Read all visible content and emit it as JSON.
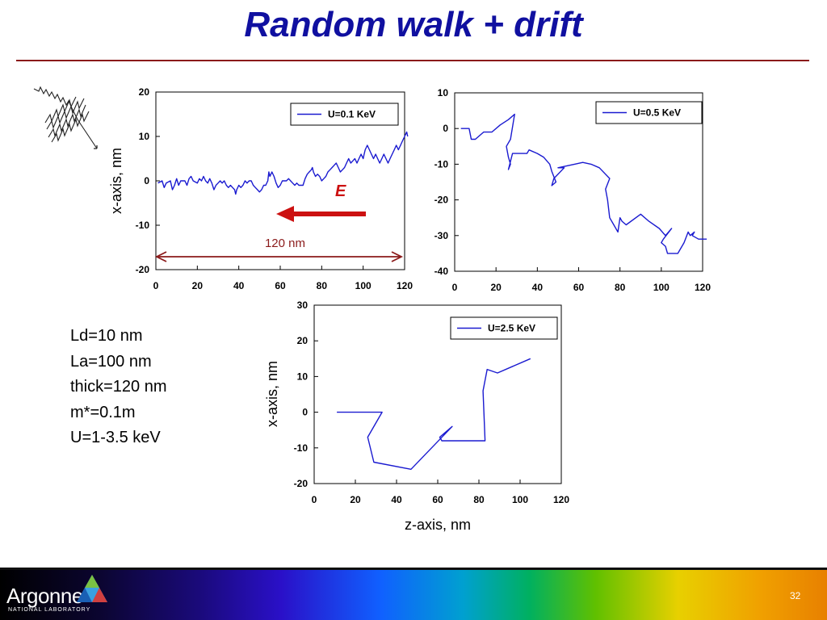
{
  "slide": {
    "title": "Random walk + drift",
    "page_number": "32",
    "parameters": [
      "Ld=10 nm",
      "La=100 nm",
      "thick=120 nm",
      "m*=0.1m",
      "U=1-3.5 keV"
    ]
  },
  "footer": {
    "logo_text": "Argonne",
    "logo_subtext": "NATIONAL LABORATORY"
  },
  "colors": {
    "title": "#1010a0",
    "rule": "#8b1a1a",
    "trace": "#1a1ad0",
    "arrow": "#cc1111",
    "dimension": "#8b1a1a"
  },
  "annotations": {
    "field_label": "E",
    "width_label": "120 nm"
  },
  "chart_data": [
    {
      "type": "line",
      "xlabel": "",
      "ylabel": "x-axis, nm",
      "xlim": [
        0,
        120
      ],
      "ylim": [
        -20,
        20
      ],
      "xticks": [
        0,
        20,
        40,
        60,
        80,
        100,
        120
      ],
      "yticks": [
        -20,
        -10,
        0,
        10,
        20
      ],
      "legend_position": "top-right",
      "series": [
        {
          "name": "U=0.1 KeV",
          "points": [
            [
              1,
              -0.5
            ],
            [
              3,
              0
            ],
            [
              4,
              -1.5
            ],
            [
              5,
              -0.5
            ],
            [
              7,
              0
            ],
            [
              8,
              -2
            ],
            [
              9,
              -1
            ],
            [
              10,
              0.5
            ],
            [
              11,
              -1
            ],
            [
              12,
              0
            ],
            [
              14,
              0
            ],
            [
              15,
              -1
            ],
            [
              16,
              0.5
            ],
            [
              17,
              1
            ],
            [
              18,
              0
            ],
            [
              20,
              -0.5
            ],
            [
              21,
              0.5
            ],
            [
              22,
              0
            ],
            [
              23,
              1
            ],
            [
              24,
              0
            ],
            [
              25,
              -0.5
            ],
            [
              26,
              0.5
            ],
            [
              27,
              -0.5
            ],
            [
              28,
              -2
            ],
            [
              29,
              -1
            ],
            [
              30,
              -0.5
            ],
            [
              31,
              0
            ],
            [
              32,
              -0.5
            ],
            [
              33,
              0
            ],
            [
              34,
              -1
            ],
            [
              35,
              -1.5
            ],
            [
              36,
              -1
            ],
            [
              37,
              -1.5
            ],
            [
              38,
              -2
            ],
            [
              38.5,
              -3
            ],
            [
              39,
              -2
            ],
            [
              40,
              -1
            ],
            [
              41,
              -1.5
            ],
            [
              42,
              -1
            ],
            [
              43,
              0
            ],
            [
              44,
              -0.5
            ],
            [
              45,
              0
            ],
            [
              46,
              0
            ],
            [
              47,
              -1
            ],
            [
              48,
              -1.5
            ],
            [
              49,
              -2
            ],
            [
              50,
              -2.5
            ],
            [
              51,
              -2
            ],
            [
              52,
              -1
            ],
            [
              53,
              -1
            ],
            [
              54,
              0
            ],
            [
              54.5,
              2
            ],
            [
              55,
              1
            ],
            [
              56,
              2
            ],
            [
              57,
              1
            ],
            [
              58,
              -0.5
            ],
            [
              59,
              -1.5
            ],
            [
              60,
              -1
            ],
            [
              61,
              0
            ],
            [
              62,
              0
            ],
            [
              63,
              0
            ],
            [
              64,
              0.5
            ],
            [
              65,
              0
            ],
            [
              66,
              -0.5
            ],
            [
              67,
              -1
            ],
            [
              68,
              -0.5
            ],
            [
              69,
              -1
            ],
            [
              70,
              -1
            ],
            [
              71,
              -1
            ],
            [
              72,
              0.5
            ],
            [
              73,
              1.5
            ],
            [
              74,
              2
            ],
            [
              75,
              2.5
            ],
            [
              75.5,
              3
            ],
            [
              76,
              2
            ],
            [
              77,
              1
            ],
            [
              78,
              1.5
            ],
            [
              79,
              1
            ],
            [
              80,
              0
            ],
            [
              81,
              0.5
            ],
            [
              82,
              1
            ],
            [
              83,
              2
            ],
            [
              84,
              2.5
            ],
            [
              85,
              3
            ],
            [
              86,
              3.5
            ],
            [
              87,
              4
            ],
            [
              88,
              3
            ],
            [
              89,
              2
            ],
            [
              90,
              2.5
            ],
            [
              91,
              3
            ],
            [
              92,
              4
            ],
            [
              93,
              5
            ],
            [
              94,
              4
            ],
            [
              95,
              4.5
            ],
            [
              96,
              5
            ],
            [
              97,
              4
            ],
            [
              98,
              5
            ],
            [
              99,
              6
            ],
            [
              100,
              5
            ],
            [
              100.5,
              6
            ],
            [
              101,
              7
            ],
            [
              102,
              8
            ],
            [
              103,
              7
            ],
            [
              104,
              6
            ],
            [
              105,
              5
            ],
            [
              106,
              6
            ],
            [
              107,
              5
            ],
            [
              108,
              4
            ],
            [
              109,
              5
            ],
            [
              110,
              6
            ],
            [
              111,
              5
            ],
            [
              112,
              4
            ],
            [
              113,
              5
            ],
            [
              114,
              6
            ],
            [
              115,
              7
            ],
            [
              116,
              8
            ],
            [
              117,
              7
            ],
            [
              118,
              8
            ],
            [
              119,
              9
            ],
            [
              120,
              10
            ],
            [
              121,
              11
            ],
            [
              121.5,
              10
            ]
          ]
        }
      ]
    },
    {
      "type": "line",
      "xlabel": "",
      "ylabel": "",
      "xlim": [
        0,
        120
      ],
      "ylim": [
        -40,
        10
      ],
      "xticks": [
        0,
        20,
        40,
        60,
        80,
        100,
        120
      ],
      "yticks": [
        -40,
        -30,
        -20,
        -10,
        0,
        10
      ],
      "legend_position": "top-right",
      "series": [
        {
          "name": "U=0.5 KeV",
          "points": [
            [
              3,
              0
            ],
            [
              7,
              0
            ],
            [
              8,
              -3
            ],
            [
              10,
              -3
            ],
            [
              14,
              -1
            ],
            [
              18,
              -1
            ],
            [
              22,
              1
            ],
            [
              26,
              2.5
            ],
            [
              29,
              4
            ],
            [
              27,
              -3
            ],
            [
              25,
              -5
            ],
            [
              26,
              -8
            ],
            [
              27,
              -10
            ],
            [
              26,
              -11.5
            ],
            [
              28,
              -7
            ],
            [
              30,
              -7
            ],
            [
              33,
              -7
            ],
            [
              35,
              -7
            ],
            [
              36,
              -6
            ],
            [
              40,
              -7
            ],
            [
              43,
              -8
            ],
            [
              46,
              -10
            ],
            [
              47,
              -12
            ],
            [
              49,
              -15
            ],
            [
              47,
              -16
            ],
            [
              48,
              -14
            ],
            [
              53,
              -11
            ],
            [
              50,
              -11
            ],
            [
              58,
              -10
            ],
            [
              62,
              -9.5
            ],
            [
              66,
              -10
            ],
            [
              70,
              -11
            ],
            [
              75,
              -14
            ],
            [
              73,
              -17
            ],
            [
              74,
              -20
            ],
            [
              75,
              -25
            ],
            [
              77,
              -27
            ],
            [
              79,
              -29
            ],
            [
              80,
              -25
            ],
            [
              81,
              -26
            ],
            [
              83,
              -27
            ],
            [
              90,
              -24
            ],
            [
              94,
              -26
            ],
            [
              99,
              -28
            ],
            [
              102,
              -30
            ],
            [
              105,
              -28
            ],
            [
              101,
              -31
            ],
            [
              100,
              -32
            ],
            [
              102,
              -33
            ],
            [
              103,
              -35
            ],
            [
              108,
              -35
            ],
            [
              111,
              -32
            ],
            [
              113,
              -29
            ],
            [
              114,
              -30
            ],
            [
              116,
              -29
            ],
            [
              115,
              -30
            ],
            [
              118,
              -31
            ],
            [
              122,
              -31
            ]
          ]
        }
      ]
    },
    {
      "type": "line",
      "xlabel": "z-axis, nm",
      "ylabel": "x-axis, nm",
      "xlim": [
        0,
        120
      ],
      "ylim": [
        -20,
        30
      ],
      "xticks": [
        0,
        20,
        40,
        60,
        80,
        100,
        120
      ],
      "yticks": [
        -20,
        -10,
        0,
        10,
        20,
        30
      ],
      "legend_position": "top-right",
      "series": [
        {
          "name": "U=2.5 KeV",
          "points": [
            [
              11,
              0
            ],
            [
              33,
              0
            ],
            [
              26,
              -7
            ],
            [
              29,
              -14
            ],
            [
              47,
              -16
            ],
            [
              67,
              -4
            ],
            [
              61,
              -7
            ],
            [
              62,
              -8
            ],
            [
              83,
              -8
            ],
            [
              82,
              6
            ],
            [
              84,
              12
            ],
            [
              89,
              11
            ],
            [
              105,
              15
            ]
          ]
        }
      ]
    }
  ]
}
